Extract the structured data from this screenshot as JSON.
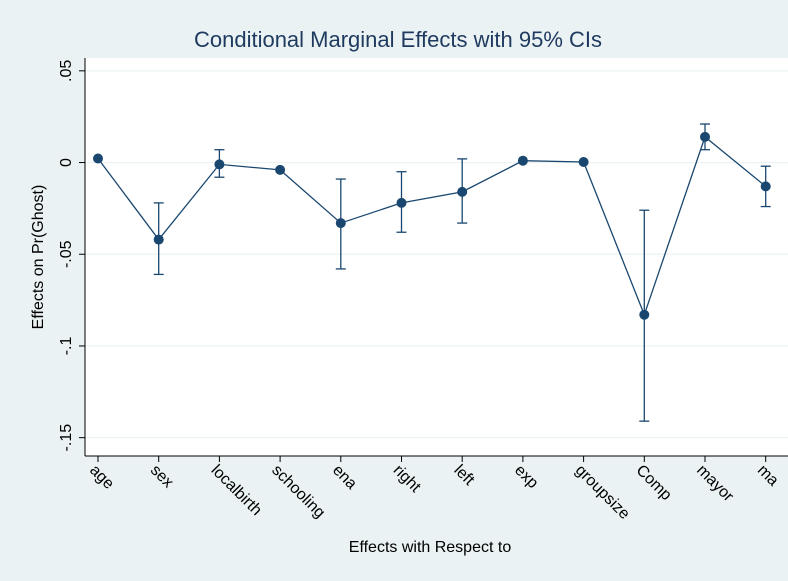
{
  "chart_data": {
    "type": "errorline",
    "title": "Conditional Marginal Effects with 95% CIs",
    "x_label": "Effects with Respect to",
    "y_label": "Effects on Pr(Ghost)",
    "categories": [
      "age",
      "sex",
      "localbirth",
      "schooling",
      "ena",
      "right",
      "left",
      "exp",
      "groupsize",
      "Comp",
      "mayor",
      "ma"
    ],
    "values": [
      0.0022,
      -0.042,
      -0.001,
      -0.004,
      -0.033,
      -0.022,
      -0.016,
      0.001,
      0.0003,
      -0.083,
      0.014,
      -0.013
    ],
    "ci_lower": [
      null,
      -0.061,
      -0.008,
      null,
      -0.058,
      -0.038,
      -0.033,
      null,
      null,
      -0.141,
      0.007,
      -0.024
    ],
    "ci_upper": [
      null,
      -0.022,
      0.007,
      null,
      -0.009,
      -0.005,
      0.002,
      null,
      null,
      -0.026,
      0.021,
      -0.002
    ],
    "color": "#1a476f",
    "ylim": [
      -0.16,
      0.057
    ],
    "yticks": [
      {
        "value": 0.05,
        "label": ".05"
      },
      0,
      {
        "value": -0.05,
        "label": "-.05"
      },
      {
        "value": -0.1,
        "label": "-.1"
      },
      {
        "value": -0.15,
        "label": "-.15"
      }
    ],
    "grid": true
  }
}
